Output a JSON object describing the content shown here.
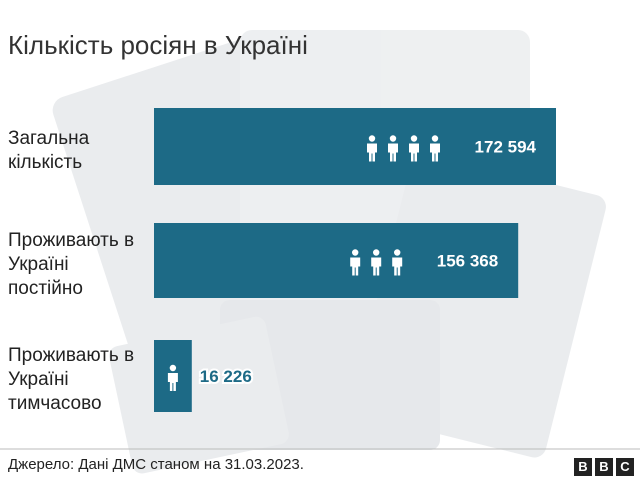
{
  "chart_data": {
    "type": "bar",
    "orientation": "horizontal",
    "title": "Кількість росіян в Україні",
    "categories": [
      "Загальна кількість",
      "Проживають в Україні постійно",
      "Проживають в Україні тимчасово"
    ],
    "values": [
      172594,
      156368,
      16226
    ],
    "value_labels": [
      "172 594",
      "156 368",
      "16 226"
    ],
    "color": "#1d6a86",
    "source": "Джерело: Дані ДМС станом на 31.03.2023.",
    "logo": [
      "B",
      "B",
      "C"
    ]
  }
}
